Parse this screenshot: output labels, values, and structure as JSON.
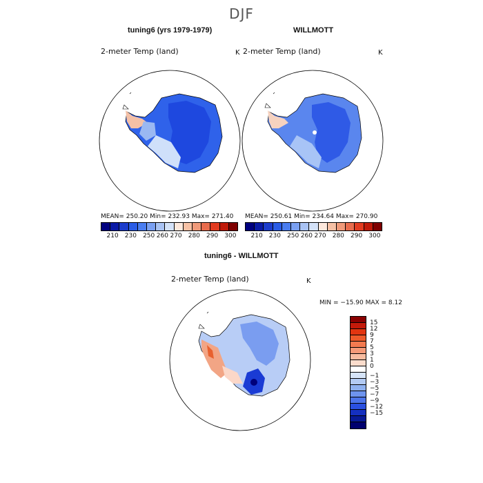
{
  "season": "DJF",
  "panels": [
    {
      "title": "tuning6 (yrs 1979-1979)",
      "variable": "2-meter Temp (land)",
      "unit": "K",
      "stats": "MEAN=  250.20   Min=  232.93   Max=  271.40"
    },
    {
      "title": "WILLMOTT",
      "variable": "2-meter Temp (land)",
      "unit": "K",
      "stats": "MEAN=  250.61   Min=  234.64   Max=  270.90"
    }
  ],
  "colorbar_abs": {
    "colors": [
      "#00007f",
      "#0a1aa6",
      "#1c3ccc",
      "#2a5ce6",
      "#4a7df0",
      "#7aa0f2",
      "#a9c3f4",
      "#d4e2f8",
      "#fde8dc",
      "#f7c1a5",
      "#f09a7a",
      "#e86c4d",
      "#e23b20",
      "#c01a0a",
      "#7f0000"
    ],
    "ticks": [
      "210",
      "230",
      "250",
      "260",
      "270",
      "280",
      "290",
      "300"
    ]
  },
  "diff": {
    "title": "tuning6 - WILLMOTT",
    "variable": "2-meter Temp (land)",
    "unit": "K",
    "minmax": "MIN = −15.90  MAX =    8.12",
    "colors": [
      "#8a0000",
      "#c41a0a",
      "#e23510",
      "#ee5a2a",
      "#f27a50",
      "#f59a78",
      "#f8bca0",
      "#fbdccc",
      "#ffffff",
      "#d6e4f8",
      "#b3cbf4",
      "#8fb1f0",
      "#6e94ee",
      "#4c74ea",
      "#2a50e0",
      "#1530c0",
      "#081a96",
      "#00006e"
    ],
    "labels": [
      "15",
      "12",
      "9",
      "7",
      "5",
      "3",
      "1",
      "0",
      "−1",
      "−3",
      "−5",
      "−7",
      "−9",
      "−12",
      "−15"
    ]
  }
}
